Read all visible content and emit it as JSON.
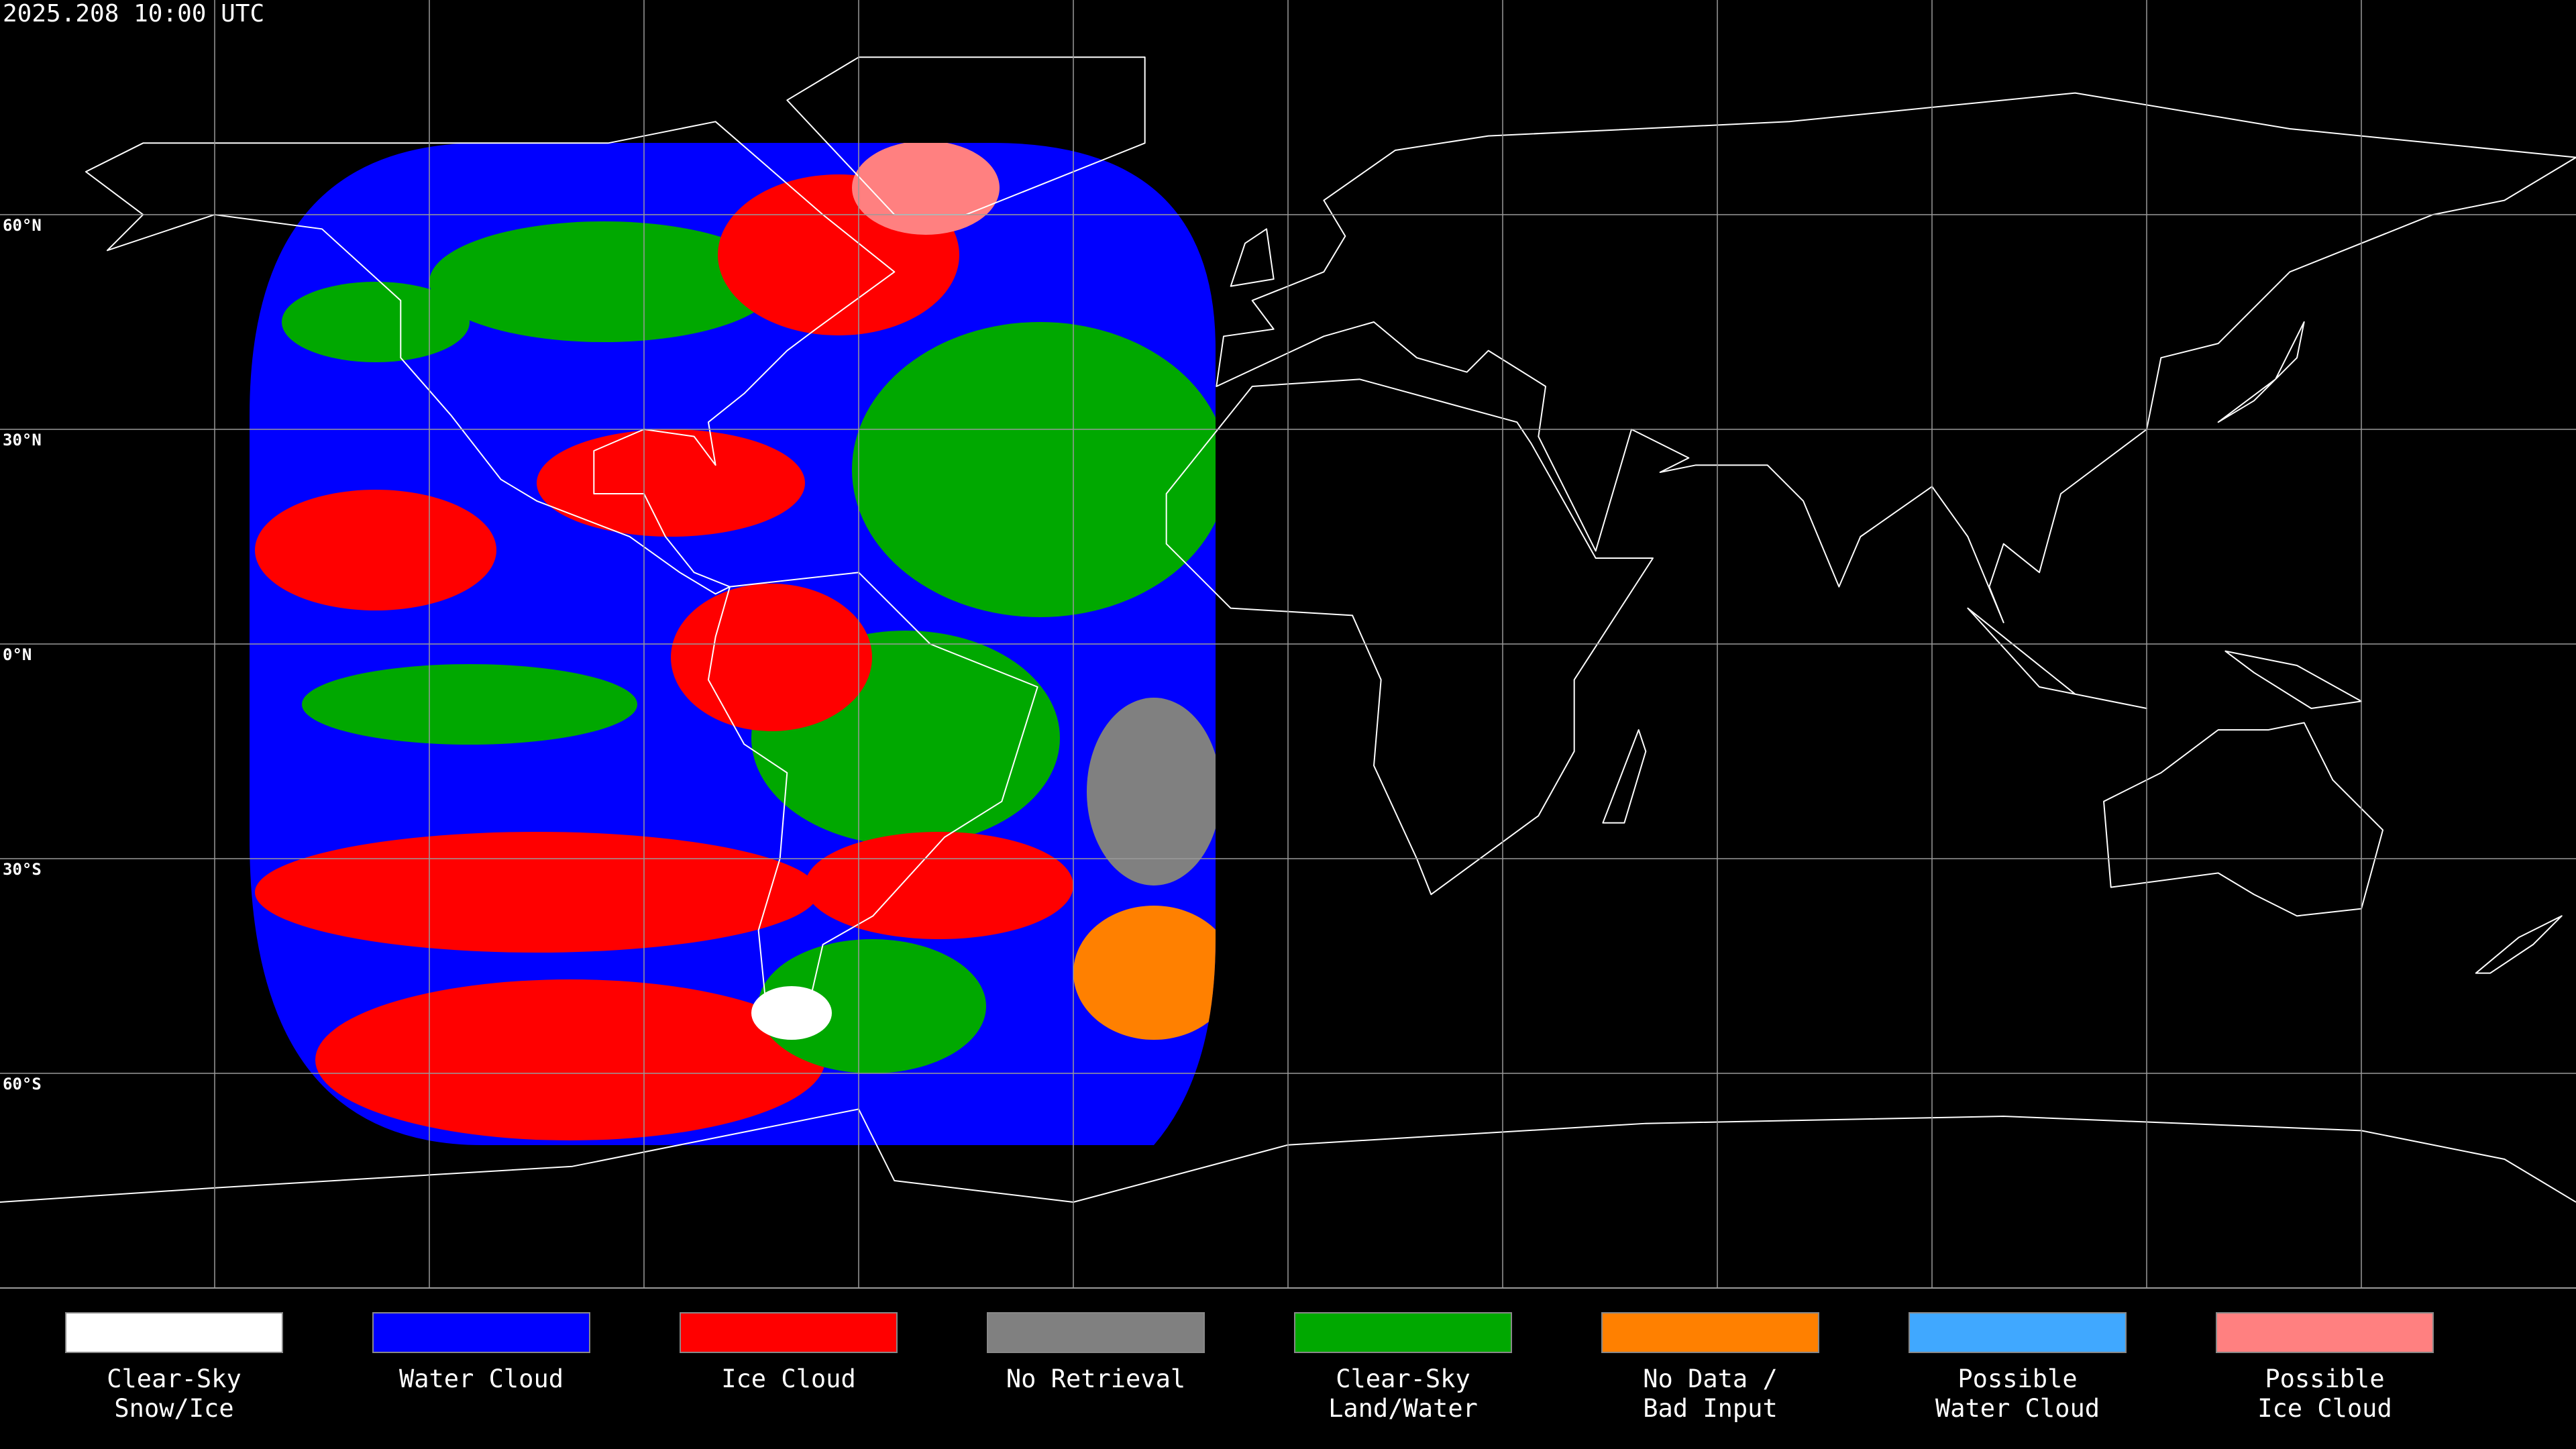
{
  "header": {
    "title": "2025.208 10:00 UTC"
  },
  "map": {
    "latitudes": [
      {
        "value": 60,
        "label": "60°N"
      },
      {
        "value": 30,
        "label": "30°N"
      },
      {
        "value": 0,
        "label": "0°N"
      },
      {
        "value": -30,
        "label": "30°S"
      },
      {
        "value": -60,
        "label": "60°S"
      }
    ]
  },
  "legend": [
    {
      "lines": [
        "Clear-Sky",
        "Snow/Ice"
      ],
      "color": "#ffffff"
    },
    {
      "lines": [
        "Water Cloud"
      ],
      "color": "#0000ff"
    },
    {
      "lines": [
        "Ice Cloud"
      ],
      "color": "#ff0000"
    },
    {
      "lines": [
        "No Retrieval"
      ],
      "color": "#808080"
    },
    {
      "lines": [
        "Clear-Sky",
        "Land/Water"
      ],
      "color": "#00a800"
    },
    {
      "lines": [
        "No Data /",
        "Bad Input"
      ],
      "color": "#ff8000"
    },
    {
      "lines": [
        "Possible",
        "Water Cloud"
      ],
      "color": "#40a8ff"
    },
    {
      "lines": [
        "Possible",
        "Ice Cloud"
      ],
      "color": "#ff8080"
    }
  ]
}
